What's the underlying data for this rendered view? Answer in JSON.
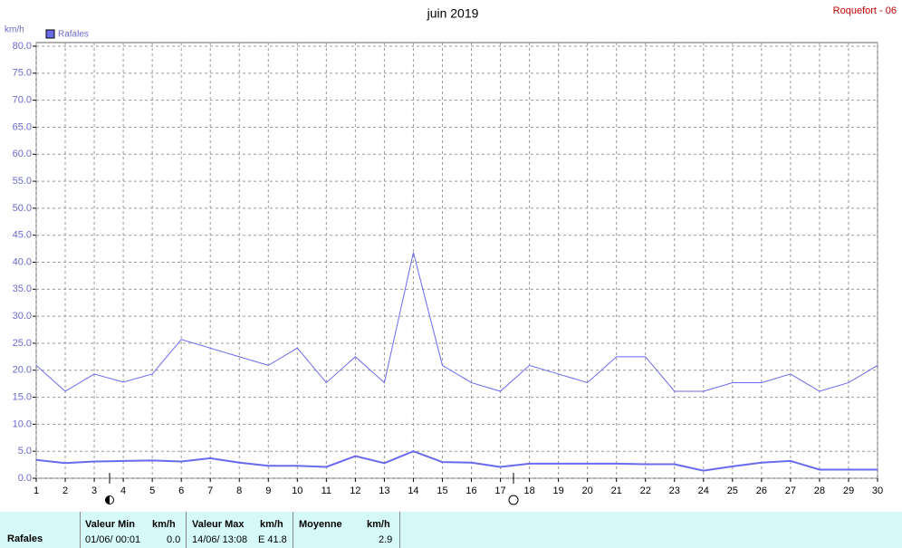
{
  "chart_data": {
    "type": "line",
    "title": "juin 2019",
    "station": "Roquefort - 06",
    "y_unit": "km/h",
    "x": [
      1,
      2,
      3,
      4,
      5,
      6,
      7,
      8,
      9,
      10,
      11,
      12,
      13,
      14,
      15,
      16,
      17,
      18,
      19,
      20,
      21,
      22,
      23,
      24,
      25,
      26,
      27,
      28,
      29,
      30
    ],
    "xlim": [
      1,
      30
    ],
    "series": [
      {
        "name": "Rafales",
        "color": "#6a6aee",
        "values": [
          20.9,
          16.1,
          19.3,
          17.8,
          19.3,
          25.7,
          24.1,
          22.5,
          20.9,
          24.1,
          17.7,
          22.5,
          17.7,
          41.8,
          20.9,
          17.7,
          16.1,
          20.9,
          19.3,
          17.7,
          22.5,
          22.5,
          16.1,
          16.1,
          17.7,
          17.7,
          19.3,
          16.1,
          17.7,
          20.9
        ]
      },
      {
        "color": "#6a6aee",
        "values": [
          3.4,
          2.8,
          3.1,
          3.2,
          3.3,
          3.1,
          3.7,
          2.9,
          2.3,
          2.3,
          2.1,
          4.1,
          2.8,
          5.0,
          3.0,
          2.9,
          2.1,
          2.7,
          2.7,
          2.7,
          2.7,
          2.6,
          2.6,
          1.4,
          2.2,
          2.9,
          3.2,
          1.6,
          1.6,
          1.6
        ]
      }
    ],
    "ylim": [
      0,
      80
    ],
    "yticks": [
      {
        "value": 0,
        "label": "0.0"
      },
      {
        "value": 5,
        "label": "5.0"
      },
      {
        "value": 10,
        "label": "10.0"
      },
      {
        "value": 15,
        "label": "15.0"
      },
      {
        "value": 20,
        "label": "20.0"
      },
      {
        "value": 25,
        "label": "25.0"
      },
      {
        "value": 30,
        "label": "30.0"
      },
      {
        "value": 35,
        "label": "35.0"
      },
      {
        "value": 40,
        "label": "40.0"
      },
      {
        "value": 45,
        "label": "45.0"
      },
      {
        "value": 50,
        "label": "50.0"
      },
      {
        "value": 55,
        "label": "55.0"
      },
      {
        "value": 60,
        "label": "60.0"
      },
      {
        "value": 65,
        "label": "65.0"
      },
      {
        "value": 70,
        "label": "70.0"
      },
      {
        "value": 75,
        "label": "75.0"
      },
      {
        "value": 80,
        "label": "80.0"
      }
    ],
    "grid": true
  },
  "summary": {
    "row_label": "Rafales",
    "min": {
      "header": "Valeur Min",
      "unit": "km/h",
      "date": "01/06/  00:01",
      "value": "0.0"
    },
    "max": {
      "header": "Valeur Max",
      "unit": "km/h",
      "date": "14/06/  13:08",
      "value": "E 41.8"
    },
    "mean": {
      "header": "Moyenne",
      "unit": "km/h",
      "value": "2.9"
    }
  }
}
